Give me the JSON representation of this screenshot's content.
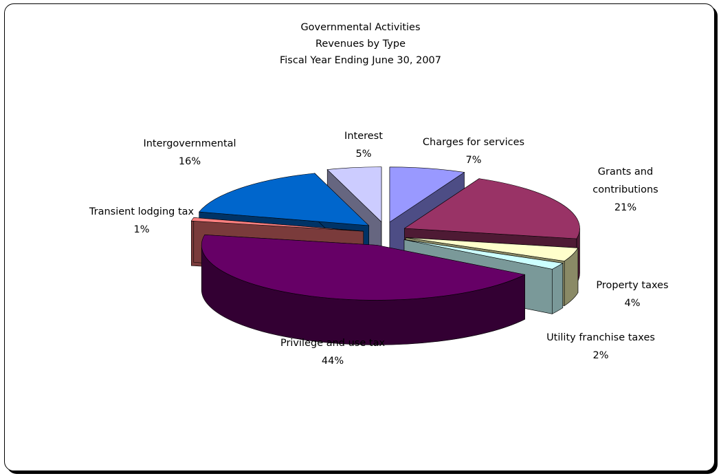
{
  "chart_data": {
    "type": "pie",
    "title": [
      "Governmental Activities",
      "Revenues by Type",
      "Fiscal Year Ending June 30, 2007"
    ],
    "slices": [
      {
        "label": "Charges for services",
        "percent_label": "7%",
        "value": 7,
        "color": "#9999ff",
        "dark": "#4d4d85"
      },
      {
        "label": "Grants and contributions",
        "percent_label": "21%",
        "value": 21,
        "color": "#993366",
        "dark": "#4e1a34"
      },
      {
        "label": "Property taxes",
        "percent_label": "4%",
        "value": 4,
        "color": "#ffffcc",
        "dark": "#8a8a66"
      },
      {
        "label": "Utility franchise taxes",
        "percent_label": "2%",
        "value": 2,
        "color": "#ccffff",
        "dark": "#7a9999"
      },
      {
        "label": "Privilege and use tax",
        "percent_label": "44%",
        "value": 44,
        "color": "#660066",
        "dark": "#330033"
      },
      {
        "label": "Transient lodging tax",
        "percent_label": "1%",
        "value": 1,
        "color": "#ff8080",
        "dark": "#7a3b3b"
      },
      {
        "label": "Intergovernmental",
        "percent_label": "16%",
        "value": 16,
        "color": "#0066cc",
        "dark": "#003366"
      },
      {
        "label": "Interest",
        "percent_label": "5%",
        "value": 5,
        "color": "#ccccff",
        "dark": "#666680"
      }
    ],
    "legend": "none",
    "data_labels": "category name and percentage"
  }
}
